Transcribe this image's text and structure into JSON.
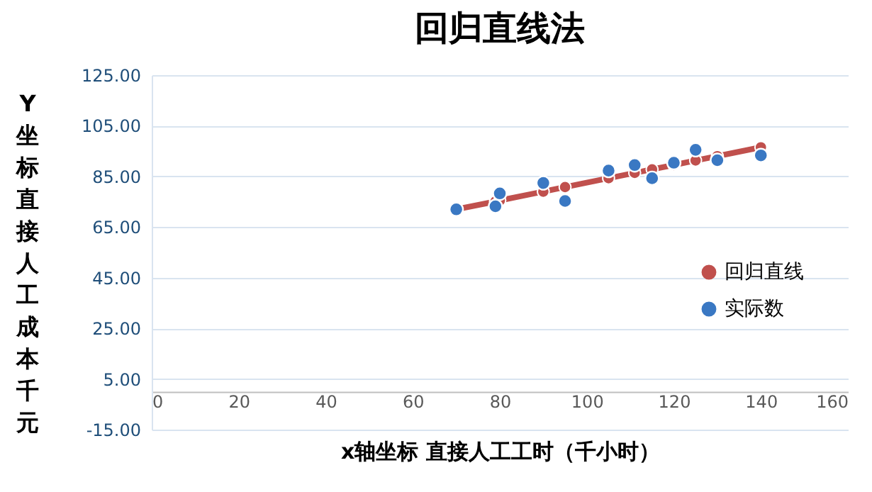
{
  "chart_data": {
    "type": "scatter",
    "title": "回归直线法",
    "xlabel": "x轴坐标 直接人工工时（千小时）",
    "ylabel": "Y坐标直接人工成本千元",
    "x": [
      70,
      79,
      80,
      90,
      95,
      105,
      111,
      115,
      120,
      125,
      130,
      140
    ],
    "series": [
      {
        "name": "回归直线",
        "type": "line",
        "marker": "circle",
        "color": "#c0504d",
        "values": [
          72.0,
          75.1,
          75.5,
          79.0,
          80.8,
          84.3,
          86.4,
          87.8,
          89.5,
          91.3,
          93.0,
          96.5
        ]
      },
      {
        "name": "实际数",
        "type": "scatter",
        "marker": "circle",
        "color": "#3a78c3",
        "values": [
          72,
          73.2,
          78.3,
          82.4,
          75.3,
          87.3,
          89.5,
          84.3,
          90.4,
          95.5,
          91.4,
          93.3
        ]
      }
    ],
    "xlim": [
      0,
      160
    ],
    "xticks": [
      0,
      20,
      40,
      60,
      80,
      100,
      120,
      140,
      160
    ],
    "ylim": [
      -15,
      125
    ],
    "yticks": [
      {
        "value": 125,
        "label": "125.00"
      },
      {
        "value": 105,
        "label": "105.00"
      },
      {
        "value": 85,
        "label": "85.00"
      },
      {
        "value": 65,
        "label": "65.00"
      },
      {
        "value": 45,
        "label": "45.00"
      },
      {
        "value": 25,
        "label": "25.00"
      },
      {
        "value": 5,
        "label": "5.00"
      },
      {
        "value": -15,
        "label": "-15.00"
      }
    ],
    "grid": "y",
    "legend": "right"
  }
}
